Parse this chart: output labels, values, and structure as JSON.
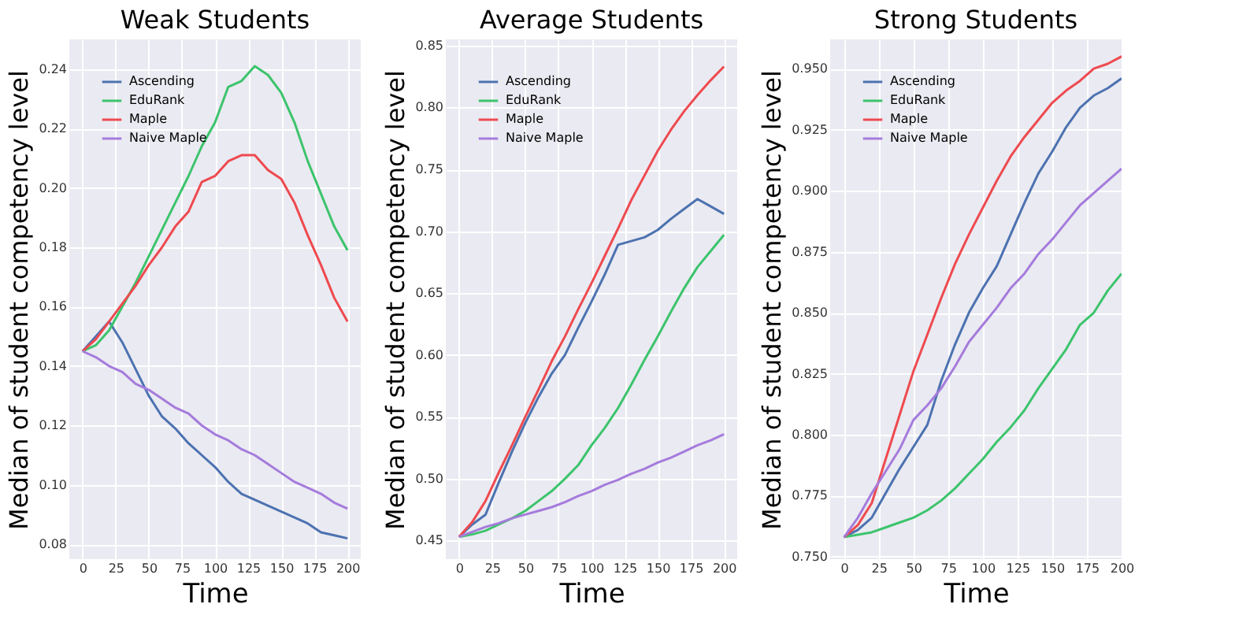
{
  "chart_data": [
    {
      "type": "line",
      "title": "Weak Students",
      "xlabel": "Time",
      "ylabel": "Median of student competency level",
      "legend": "top left",
      "grid": true,
      "x": [
        0,
        10,
        20,
        30,
        40,
        50,
        60,
        70,
        80,
        90,
        100,
        110,
        120,
        130,
        140,
        150,
        160,
        170,
        180,
        190,
        200
      ],
      "xlim": [
        -10,
        210
      ],
      "xticks": [
        0,
        25,
        50,
        75,
        100,
        125,
        150,
        175,
        200
      ],
      "ylim": [
        0.075,
        0.25
      ],
      "yticks": [
        0.08,
        {
          "value": 0.1,
          "label": "0.10"
        },
        0.12,
        0.14,
        0.16,
        0.18,
        {
          "value": 0.2,
          "label": "0.20"
        },
        0.22,
        0.24
      ],
      "series": [
        {
          "name": "Ascending",
          "color": "#4c72b0",
          "values": [
            0.145,
            0.15,
            0.155,
            0.148,
            0.139,
            0.13,
            0.123,
            0.119,
            0.114,
            0.11,
            0.106,
            0.101,
            0.097,
            0.095,
            0.093,
            0.091,
            0.089,
            0.087,
            0.084,
            0.083,
            0.082
          ]
        },
        {
          "name": "EduRank",
          "color": "#3cc46c",
          "values": [
            0.145,
            0.147,
            0.152,
            0.16,
            0.168,
            0.177,
            0.186,
            0.195,
            0.204,
            0.214,
            0.222,
            0.234,
            0.236,
            0.241,
            0.238,
            0.232,
            0.222,
            0.209,
            0.198,
            0.187,
            0.179
          ]
        },
        {
          "name": "Maple",
          "color": "#ee4a4f",
          "values": [
            0.145,
            0.149,
            0.155,
            0.161,
            0.167,
            0.174,
            0.18,
            0.187,
            0.192,
            0.202,
            0.204,
            0.209,
            0.211,
            0.211,
            0.206,
            0.203,
            0.195,
            0.184,
            0.174,
            0.163,
            0.155
          ]
        },
        {
          "name": "Naive Maple",
          "color": "#a57bdc",
          "values": [
            0.145,
            0.143,
            0.14,
            0.138,
            0.134,
            0.132,
            0.129,
            0.126,
            0.124,
            0.12,
            0.117,
            0.115,
            0.112,
            0.11,
            0.107,
            0.104,
            0.101,
            0.099,
            0.097,
            0.094,
            0.092
          ]
        }
      ]
    },
    {
      "type": "line",
      "title": "Average Students",
      "xlabel": "Time",
      "ylabel": "Median of student competency level",
      "legend": "top left",
      "grid": true,
      "x": [
        0,
        10,
        20,
        30,
        40,
        50,
        60,
        70,
        80,
        90,
        100,
        110,
        120,
        130,
        140,
        150,
        160,
        170,
        180,
        190,
        200
      ],
      "xlim": [
        -10,
        210
      ],
      "xticks": [
        0,
        25,
        50,
        75,
        100,
        125,
        150,
        175,
        200
      ],
      "ylim": [
        0.435,
        0.855
      ],
      "yticks": [
        0.45,
        {
          "value": 0.5,
          "label": "0.50"
        },
        0.55,
        {
          "value": 0.6,
          "label": "0.60"
        },
        0.65,
        {
          "value": 0.7,
          "label": "0.70"
        },
        0.75,
        {
          "value": 0.8,
          "label": "0.80"
        },
        0.85
      ],
      "series": [
        {
          "name": "Ascending",
          "color": "#4c72b0",
          "values": [
            0.453,
            0.463,
            0.471,
            0.497,
            0.522,
            0.545,
            0.566,
            0.585,
            0.6,
            0.622,
            0.643,
            0.665,
            0.689,
            0.692,
            0.695,
            0.701,
            0.71,
            0.718,
            0.726,
            0.72,
            0.714
          ]
        },
        {
          "name": "EduRank",
          "color": "#3cc46c",
          "values": [
            0.453,
            0.455,
            0.458,
            0.463,
            0.468,
            0.474,
            0.482,
            0.49,
            0.5,
            0.511,
            0.527,
            0.541,
            0.557,
            0.576,
            0.596,
            0.615,
            0.635,
            0.654,
            0.671,
            0.684,
            0.697
          ]
        },
        {
          "name": "Maple",
          "color": "#ee4a4f",
          "values": [
            0.453,
            0.465,
            0.482,
            0.505,
            0.527,
            0.55,
            0.572,
            0.595,
            0.615,
            0.637,
            0.658,
            0.68,
            0.702,
            0.725,
            0.745,
            0.765,
            0.782,
            0.797,
            0.81,
            0.822,
            0.833
          ]
        },
        {
          "name": "Naive Maple",
          "color": "#a57bdc",
          "values": [
            0.453,
            0.457,
            0.461,
            0.464,
            0.468,
            0.471,
            0.474,
            0.477,
            0.481,
            0.486,
            0.49,
            0.495,
            0.499,
            0.504,
            0.508,
            0.513,
            0.517,
            0.522,
            0.527,
            0.531,
            0.536
          ]
        }
      ]
    },
    {
      "type": "line",
      "title": "Strong Students",
      "xlabel": "Time",
      "ylabel": "Median of student competency level",
      "legend": "top left",
      "grid": true,
      "x": [
        0,
        10,
        20,
        30,
        40,
        50,
        60,
        70,
        80,
        90,
        100,
        110,
        120,
        130,
        140,
        150,
        160,
        170,
        180,
        190,
        200
      ],
      "xlim": [
        -10,
        200
      ],
      "xticks": [
        0,
        25,
        50,
        75,
        100,
        125,
        150,
        175,
        200
      ],
      "ylim": [
        0.749,
        0.962
      ],
      "yticks": [
        {
          "value": 0.75,
          "label": "0.750"
        },
        0.775,
        {
          "value": 0.8,
          "label": "0.800"
        },
        0.825,
        {
          "value": 0.85,
          "label": "0.850"
        },
        0.875,
        {
          "value": 0.9,
          "label": "0.900"
        },
        0.925,
        {
          "value": 0.95,
          "label": "0.950"
        }
      ],
      "series": [
        {
          "name": "Ascending",
          "color": "#4c72b0",
          "values": [
            0.758,
            0.761,
            0.766,
            0.776,
            0.786,
            0.795,
            0.804,
            0.822,
            0.837,
            0.85,
            0.86,
            0.869,
            0.882,
            0.895,
            0.907,
            0.916,
            0.926,
            0.934,
            0.939,
            0.942,
            0.946
          ]
        },
        {
          "name": "EduRank",
          "color": "#3cc46c",
          "values": [
            0.758,
            0.759,
            0.76,
            0.762,
            0.764,
            0.766,
            0.769,
            0.773,
            0.778,
            0.784,
            0.79,
            0.797,
            0.803,
            0.81,
            0.819,
            0.827,
            0.835,
            0.845,
            0.85,
            0.859,
            0.866
          ]
        },
        {
          "name": "Maple",
          "color": "#ee4a4f",
          "values": [
            0.758,
            0.763,
            0.772,
            0.79,
            0.808,
            0.826,
            0.841,
            0.856,
            0.87,
            0.882,
            0.893,
            0.904,
            0.914,
            0.922,
            0.929,
            0.936,
            0.941,
            0.945,
            0.95,
            0.952,
            0.955
          ]
        },
        {
          "name": "Naive Maple",
          "color": "#a57bdc",
          "values": [
            0.758,
            0.766,
            0.776,
            0.785,
            0.794,
            0.806,
            0.812,
            0.819,
            0.828,
            0.838,
            0.845,
            0.852,
            0.86,
            0.866,
            0.874,
            0.88,
            0.887,
            0.894,
            0.899,
            0.904,
            0.909
          ]
        }
      ]
    }
  ]
}
